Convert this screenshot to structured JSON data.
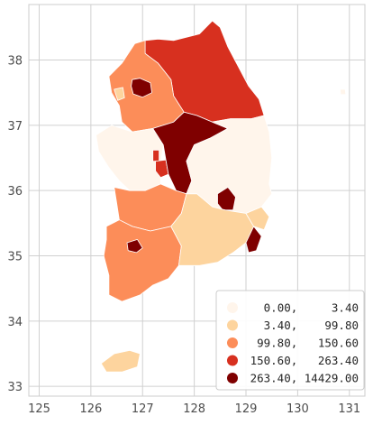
{
  "chart_data": {
    "type": "choropleth",
    "xlim": [
      124.8,
      131.3
    ],
    "ylim": [
      32.85,
      38.85
    ],
    "x_ticks": [
      125,
      126,
      127,
      128,
      129,
      130,
      131
    ],
    "y_ticks": [
      33,
      34,
      35,
      36,
      37,
      38
    ],
    "x_tick_labels": [
      "125",
      "126",
      "127",
      "128",
      "129",
      "130",
      "131"
    ],
    "y_tick_labels": [
      "33",
      "34",
      "35",
      "36",
      "37",
      "38"
    ],
    "grid": true,
    "legend": {
      "placement": "lower-right",
      "entries": [
        {
          "label": "0.00,     3.40",
          "color": "#fff5eb"
        },
        {
          "label": "3.40,    99.80",
          "color": "#fdd49e"
        },
        {
          "label": "99.80,   150.60",
          "color": "#fc8d59"
        },
        {
          "label": "150.60,   263.40",
          "color": "#d7301f"
        },
        {
          "label": "263.40, 14429.00",
          "color": "#7f0000"
        }
      ]
    },
    "regions": [
      {
        "id": "gangwon",
        "class": 3,
        "polygon": [
          [
            127.05,
            38.3
          ],
          [
            127.3,
            38.32
          ],
          [
            127.6,
            38.3
          ],
          [
            128.1,
            38.4
          ],
          [
            128.35,
            38.6
          ],
          [
            128.5,
            38.5
          ],
          [
            128.65,
            38.2
          ],
          [
            128.85,
            37.9
          ],
          [
            129.05,
            37.6
          ],
          [
            129.25,
            37.4
          ],
          [
            129.35,
            37.15
          ],
          [
            129.1,
            37.1
          ],
          [
            128.7,
            37.1
          ],
          [
            128.35,
            37.05
          ],
          [
            128.05,
            37.15
          ],
          [
            127.8,
            37.2
          ],
          [
            127.6,
            37.45
          ],
          [
            127.55,
            37.7
          ],
          [
            127.3,
            37.95
          ],
          [
            127.05,
            38.1
          ]
        ]
      },
      {
        "id": "gyeonggi",
        "class": 2,
        "polygon": [
          [
            126.35,
            37.75
          ],
          [
            126.6,
            37.95
          ],
          [
            126.85,
            38.25
          ],
          [
            127.05,
            38.3
          ],
          [
            127.05,
            38.1
          ],
          [
            127.3,
            37.95
          ],
          [
            127.55,
            37.7
          ],
          [
            127.6,
            37.45
          ],
          [
            127.8,
            37.2
          ],
          [
            127.6,
            37.05
          ],
          [
            127.2,
            36.95
          ],
          [
            126.8,
            36.9
          ],
          [
            126.6,
            37.05
          ],
          [
            126.55,
            37.3
          ],
          [
            126.4,
            37.5
          ]
        ]
      },
      {
        "id": "seoul",
        "class": 4,
        "polygon": [
          [
            126.8,
            37.7
          ],
          [
            126.95,
            37.72
          ],
          [
            127.15,
            37.65
          ],
          [
            127.18,
            37.5
          ],
          [
            127.0,
            37.43
          ],
          [
            126.82,
            37.48
          ],
          [
            126.78,
            37.6
          ]
        ]
      },
      {
        "id": "incheon",
        "class": 1,
        "polygon": [
          [
            126.45,
            37.55
          ],
          [
            126.62,
            37.58
          ],
          [
            126.65,
            37.42
          ],
          [
            126.52,
            37.38
          ]
        ]
      },
      {
        "id": "chungnam",
        "class": 0,
        "polygon": [
          [
            126.1,
            36.85
          ],
          [
            126.4,
            37.0
          ],
          [
            126.8,
            36.9
          ],
          [
            127.2,
            36.95
          ],
          [
            127.4,
            36.7
          ],
          [
            127.35,
            36.4
          ],
          [
            127.35,
            36.1
          ],
          [
            127.05,
            36.0
          ],
          [
            126.75,
            36.0
          ],
          [
            126.55,
            36.15
          ],
          [
            126.35,
            36.35
          ],
          [
            126.15,
            36.6
          ]
        ]
      },
      {
        "id": "sejong",
        "class": 3,
        "polygon": [
          [
            127.2,
            36.62
          ],
          [
            127.32,
            36.62
          ],
          [
            127.32,
            36.45
          ],
          [
            127.2,
            36.45
          ]
        ]
      },
      {
        "id": "daejeon",
        "class": 3,
        "polygon": [
          [
            127.25,
            36.45
          ],
          [
            127.45,
            36.47
          ],
          [
            127.5,
            36.25
          ],
          [
            127.35,
            36.2
          ],
          [
            127.25,
            36.3
          ]
        ]
      },
      {
        "id": "chungbuk",
        "class": 4,
        "polygon": [
          [
            127.2,
            36.95
          ],
          [
            127.6,
            37.05
          ],
          [
            127.8,
            37.2
          ],
          [
            128.05,
            37.15
          ],
          [
            128.35,
            37.05
          ],
          [
            128.65,
            36.95
          ],
          [
            128.3,
            36.8
          ],
          [
            128.0,
            36.7
          ],
          [
            127.85,
            36.45
          ],
          [
            127.95,
            36.15
          ],
          [
            127.85,
            35.95
          ],
          [
            127.65,
            36.0
          ],
          [
            127.5,
            36.25
          ],
          [
            127.45,
            36.47
          ],
          [
            127.4,
            36.7
          ]
        ]
      },
      {
        "id": "gyeongbuk",
        "class": 0,
        "polygon": [
          [
            128.35,
            37.05
          ],
          [
            128.7,
            37.1
          ],
          [
            129.1,
            37.1
          ],
          [
            129.35,
            37.15
          ],
          [
            129.45,
            36.9
          ],
          [
            129.5,
            36.5
          ],
          [
            129.45,
            36.1
          ],
          [
            129.5,
            35.95
          ],
          [
            129.3,
            35.75
          ],
          [
            129.0,
            35.65
          ],
          [
            128.6,
            35.7
          ],
          [
            128.35,
            35.75
          ],
          [
            128.05,
            35.95
          ],
          [
            127.85,
            35.95
          ],
          [
            127.95,
            36.15
          ],
          [
            127.85,
            36.45
          ],
          [
            128.0,
            36.7
          ],
          [
            128.3,
            36.8
          ],
          [
            128.65,
            36.95
          ]
        ]
      },
      {
        "id": "daegu",
        "class": 4,
        "polygon": [
          [
            128.45,
            35.95
          ],
          [
            128.65,
            36.05
          ],
          [
            128.8,
            35.9
          ],
          [
            128.75,
            35.7
          ],
          [
            128.55,
            35.7
          ],
          [
            128.45,
            35.8
          ]
        ]
      },
      {
        "id": "jeonbuk",
        "class": 2,
        "polygon": [
          [
            126.45,
            36.05
          ],
          [
            126.75,
            36.0
          ],
          [
            127.05,
            36.0
          ],
          [
            127.35,
            36.1
          ],
          [
            127.65,
            36.0
          ],
          [
            127.85,
            35.95
          ],
          [
            127.75,
            35.65
          ],
          [
            127.55,
            35.45
          ],
          [
            127.15,
            35.38
          ],
          [
            126.8,
            35.45
          ],
          [
            126.55,
            35.55
          ],
          [
            126.5,
            35.8
          ]
        ]
      },
      {
        "id": "jeonnam",
        "class": 2,
        "polygon": [
          [
            126.3,
            35.45
          ],
          [
            126.55,
            35.55
          ],
          [
            126.8,
            35.45
          ],
          [
            127.15,
            35.38
          ],
          [
            127.55,
            35.45
          ],
          [
            127.75,
            35.15
          ],
          [
            127.7,
            34.85
          ],
          [
            127.5,
            34.65
          ],
          [
            127.2,
            34.55
          ],
          [
            126.95,
            34.4
          ],
          [
            126.6,
            34.3
          ],
          [
            126.35,
            34.4
          ],
          [
            126.35,
            34.7
          ],
          [
            126.25,
            35.0
          ],
          [
            126.3,
            35.25
          ]
        ]
      },
      {
        "id": "gwangju",
        "class": 4,
        "polygon": [
          [
            126.7,
            35.2
          ],
          [
            126.9,
            35.25
          ],
          [
            127.0,
            35.12
          ],
          [
            126.88,
            35.05
          ],
          [
            126.72,
            35.08
          ]
        ]
      },
      {
        "id": "gyeongnam",
        "class": 1,
        "polygon": [
          [
            127.55,
            35.45
          ],
          [
            127.75,
            35.65
          ],
          [
            127.85,
            35.95
          ],
          [
            128.05,
            35.95
          ],
          [
            128.35,
            35.75
          ],
          [
            128.6,
            35.7
          ],
          [
            129.0,
            35.65
          ],
          [
            129.15,
            35.45
          ],
          [
            129.0,
            35.2
          ],
          [
            128.75,
            35.05
          ],
          [
            128.45,
            34.9
          ],
          [
            128.1,
            34.85
          ],
          [
            127.7,
            34.85
          ],
          [
            127.75,
            35.15
          ]
        ]
      },
      {
        "id": "ulsan",
        "class": 1,
        "polygon": [
          [
            129.0,
            35.65
          ],
          [
            129.3,
            35.75
          ],
          [
            129.45,
            35.6
          ],
          [
            129.35,
            35.4
          ],
          [
            129.15,
            35.45
          ]
        ]
      },
      {
        "id": "busan",
        "class": 4,
        "polygon": [
          [
            129.0,
            35.2
          ],
          [
            129.15,
            35.45
          ],
          [
            129.3,
            35.3
          ],
          [
            129.2,
            35.08
          ],
          [
            129.05,
            35.05
          ]
        ]
      },
      {
        "id": "jeju",
        "class": 1,
        "polygon": [
          [
            126.2,
            33.35
          ],
          [
            126.45,
            33.5
          ],
          [
            126.75,
            33.55
          ],
          [
            126.95,
            33.5
          ],
          [
            126.9,
            33.3
          ],
          [
            126.6,
            33.22
          ],
          [
            126.3,
            33.22
          ]
        ]
      },
      {
        "id": "ulleungdo",
        "class": 0,
        "polygon": [
          [
            130.82,
            37.55
          ],
          [
            130.92,
            37.55
          ],
          [
            130.93,
            37.47
          ],
          [
            130.83,
            37.47
          ]
        ]
      }
    ]
  }
}
